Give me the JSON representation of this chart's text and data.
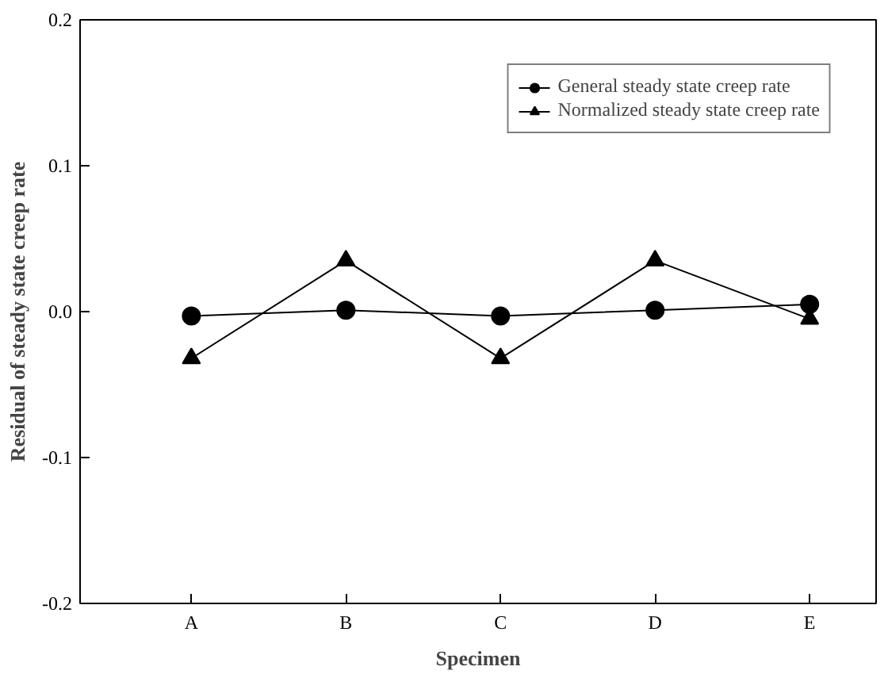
{
  "chart_data": {
    "type": "line",
    "xlabel": "Specimen",
    "ylabel": "Residual of steady state creep rate",
    "categories": [
      "A",
      "B",
      "C",
      "D",
      "E"
    ],
    "series": [
      {
        "name": "General steady state creep rate",
        "color": "#000000",
        "marker": "circle",
        "values": [
          -0.003,
          0.001,
          -0.003,
          0.001,
          0.005
        ]
      },
      {
        "name": "Normalized steady state creep rate",
        "color": "#000000",
        "marker": "triangle",
        "values": [
          -0.032,
          0.035,
          -0.032,
          0.035,
          -0.005
        ]
      }
    ],
    "ylim": [
      -0.2,
      0.2
    ],
    "yticks": [
      {
        "value": -0.2,
        "label": "-0.2"
      },
      {
        "value": -0.1,
        "label": "-0.1"
      },
      {
        "value": 0,
        "label": "0.0"
      },
      {
        "value": 0.1,
        "label": "0.1"
      },
      {
        "value": 0.2,
        "label": "0.2"
      }
    ],
    "grid": false,
    "legend": "top right",
    "line_style": "solid"
  }
}
